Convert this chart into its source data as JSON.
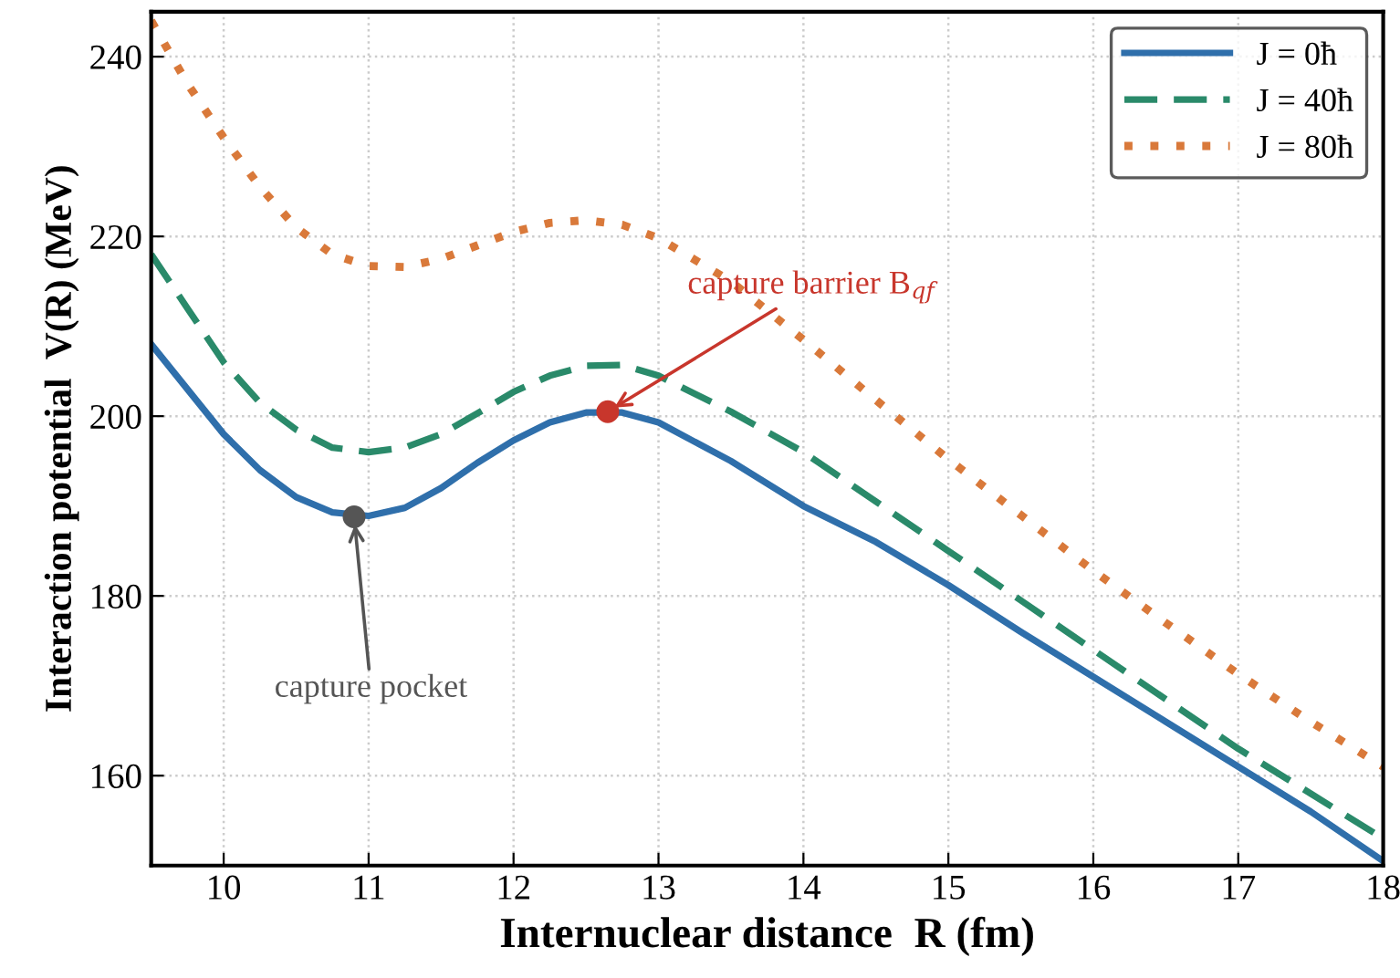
{
  "chart_data": {
    "type": "line",
    "xlabel": "Internuclear distance  R (fm)",
    "ylabel": "Interaction potential  V(R) (MeV)",
    "x": [
      9.5,
      9.75,
      10,
      10.25,
      10.5,
      10.75,
      11,
      11.25,
      11.5,
      11.75,
      12,
      12.25,
      12.5,
      12.75,
      13,
      13.5,
      14,
      14.5,
      15,
      15.5,
      16,
      16.5,
      17,
      17.5,
      18
    ],
    "series": [
      {
        "name": "J = 0ħ",
        "color": "#2f6fab",
        "line_style": "solid",
        "values": [
          208,
          203,
          198,
          194,
          191,
          189.3,
          188.9,
          189.8,
          192,
          194.8,
          197.3,
          199.3,
          200.4,
          200.4,
          199.3,
          195,
          190,
          186,
          181.2,
          176,
          171,
          166,
          161,
          156,
          150.5
        ]
      },
      {
        "name": "J = 40ħ",
        "color": "#2a8a6a",
        "line_style": "dashed",
        "values": [
          218,
          212,
          206,
          201.5,
          198.5,
          196.5,
          196,
          196.5,
          198,
          200.3,
          202.7,
          204.5,
          205.6,
          205.7,
          204.5,
          200.5,
          196,
          190.5,
          185,
          179.5,
          174,
          168.5,
          163,
          158,
          153
        ]
      },
      {
        "name": "J = 80ħ",
        "color": "#d9793a",
        "line_style": "dotted",
        "values": [
          244,
          237,
          231,
          225.5,
          221,
          218,
          216.7,
          216.6,
          217.5,
          219,
          220.5,
          221.5,
          221.8,
          221.3,
          219.8,
          215,
          208.5,
          201.8,
          195.2,
          189,
          182.8,
          177,
          171.3,
          166,
          161
        ]
      }
    ],
    "annotations": [
      {
        "text": "capture pocket",
        "x": 10.9,
        "y": 188.8
      },
      {
        "text": "capture barrier B$_{qf}$",
        "x": 12.65,
        "y": 200.5
      }
    ],
    "xlim": [
      9.5,
      18
    ],
    "ylim": [
      150,
      245
    ],
    "xticks": [
      10,
      11,
      12,
      13,
      14,
      15,
      16,
      17,
      18
    ],
    "yticks": [
      160,
      180,
      200,
      220,
      240
    ],
    "grid": true,
    "legend": "top right",
    "marker": "none"
  }
}
